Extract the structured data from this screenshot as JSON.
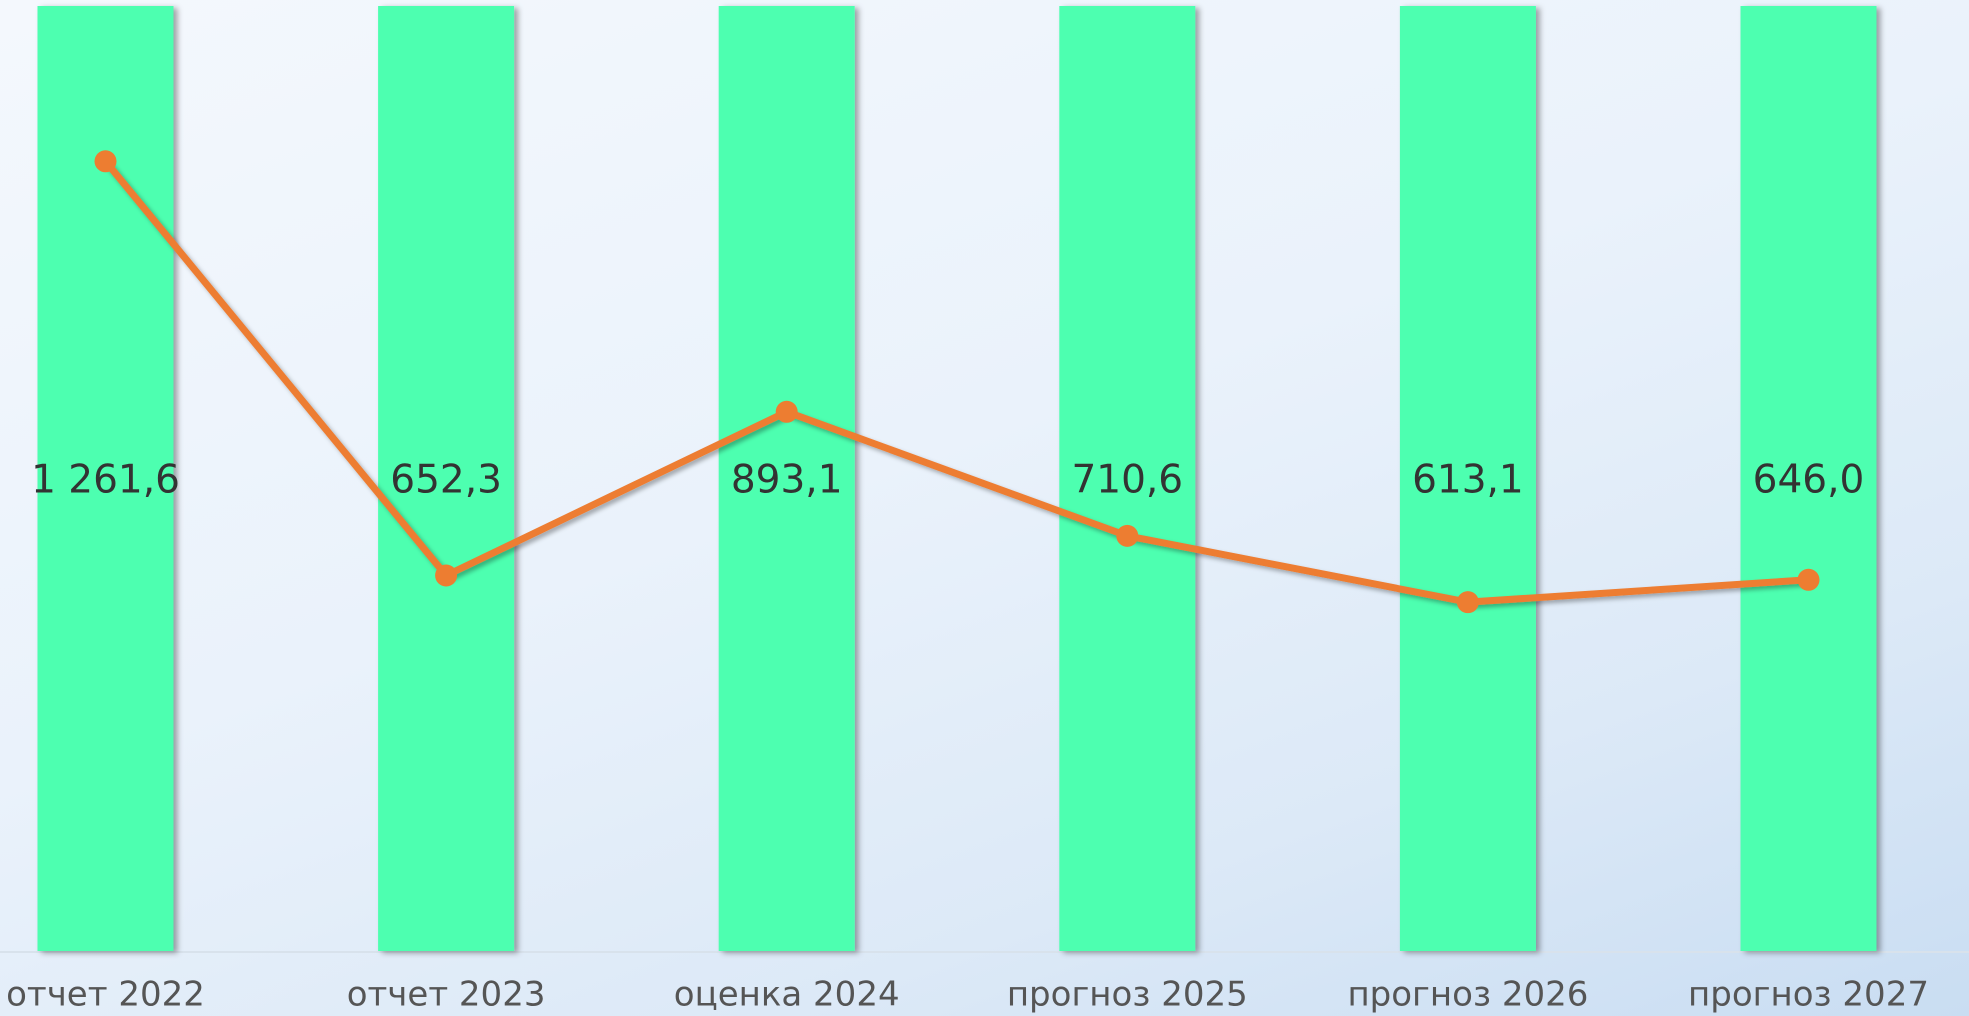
{
  "chart_data": {
    "type": "line",
    "categories": [
      "отчет 2022",
      "отчет 2023",
      "оценка 2024",
      "прогноз 2025",
      "прогноз 2026",
      "прогноз 2027"
    ],
    "values": [
      1261.6,
      652.3,
      893.1,
      710.6,
      613.1,
      646.0
    ],
    "value_labels": [
      "1 261,6",
      "652,3",
      "893,1",
      "710,6",
      "613,1",
      "646,0"
    ],
    "color": "#ed7d31",
    "bar_color": "#4dffb0",
    "ylim": [
      100,
      1490
    ]
  }
}
